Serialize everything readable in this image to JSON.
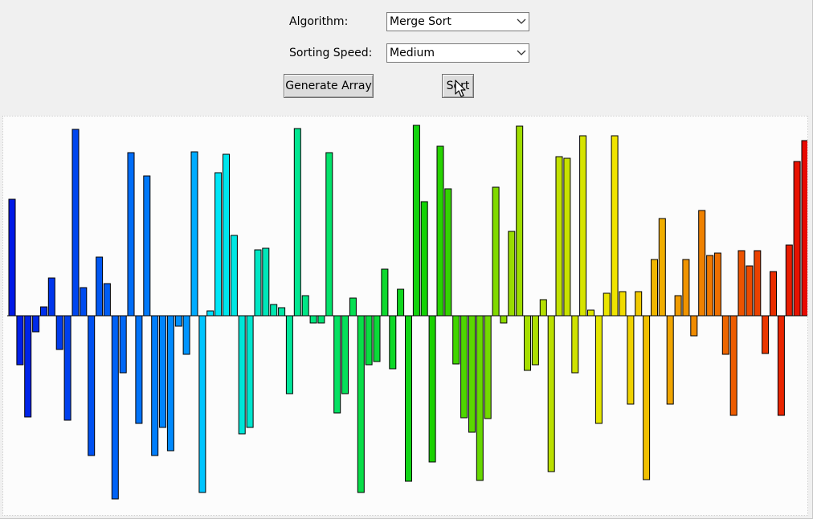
{
  "controls": {
    "algorithm_label": "Algorithm:",
    "algorithm_value": "Merge Sort",
    "speed_label": "Sorting Speed:",
    "speed_value": "Medium",
    "generate_label": "Generate Array",
    "sort_label": "Sort"
  },
  "visualization": {
    "baseline_label": "zero line",
    "bar_values": [
      145,
      -61,
      -126,
      -20,
      11,
      47,
      -42,
      -130,
      232,
      35,
      -174,
      73,
      40,
      -228,
      -71,
      203,
      -134,
      174,
      -174,
      -139,
      -168,
      -13,
      -48,
      204,
      -220,
      6,
      178,
      201,
      100,
      -147,
      -139,
      82,
      84,
      14,
      10,
      -97,
      233,
      25,
      -9,
      -9,
      203,
      -121,
      -97,
      22,
      -220,
      -61,
      -57,
      58,
      -66,
      33,
      -206,
      237,
      142,
      -182,
      211,
      158,
      -60,
      -127,
      -145,
      -205,
      -128,
      160,
      -9,
      105,
      236,
      -68,
      -61,
      20,
      -194,
      198,
      196,
      -71,
      224,
      7,
      -134,
      28,
      224,
      30,
      -110,
      30,
      -204,
      70,
      121,
      -110,
      25,
      70,
      -25,
      131,
      75,
      78,
      -48,
      -124,
      81,
      62,
      81,
      -47,
      55,
      -124,
      88,
      192,
      218,
      119
    ],
    "color_start": "#0019e6",
    "color_end": "#e60000",
    "bar_outline": "#000000"
  },
  "cursor_icon": "mouse-pointer"
}
